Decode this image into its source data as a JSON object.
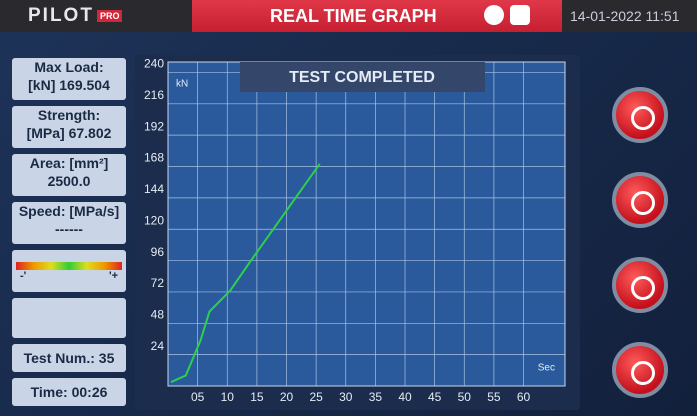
{
  "header": {
    "logo": "PILOT",
    "logo_badge": "PRO",
    "title": "REAL TIME GRAPH",
    "datetime": "14-01-2022 11:51"
  },
  "panel": {
    "max_load": {
      "label": "Max Load:",
      "value": "[kN] 169.504"
    },
    "strength": {
      "label": "Strength:",
      "value": "[MPa] 67.802"
    },
    "area": {
      "label": "Area: [mm²]",
      "value": "2500.0"
    },
    "speed": {
      "label": "Speed: [MPa/s]",
      "value": "------"
    },
    "gauge": {
      "minus": "-'",
      "plus": "'+"
    },
    "test_num": "Test Num.: 35",
    "time": "Time: 00:26"
  },
  "chart_data": {
    "type": "line",
    "annotation": "TEST COMPLETED",
    "y_label": "kN",
    "x_label": "Sec",
    "x": [
      0.5,
      3,
      5.5,
      7,
      10.5,
      14,
      25.6
    ],
    "values": [
      3,
      8,
      35,
      57,
      73,
      96,
      170
    ],
    "color": "#2bd14a",
    "xlim": [
      0,
      67
    ],
    "ylim": [
      0,
      248
    ],
    "xticks": [
      {
        "value": 5,
        "label": "05"
      },
      10,
      15,
      20,
      25,
      30,
      35,
      40,
      45,
      50,
      55,
      60
    ],
    "yticks": [
      24,
      48,
      72,
      96,
      120,
      144,
      168,
      192,
      216,
      240
    ],
    "grid": true
  }
}
